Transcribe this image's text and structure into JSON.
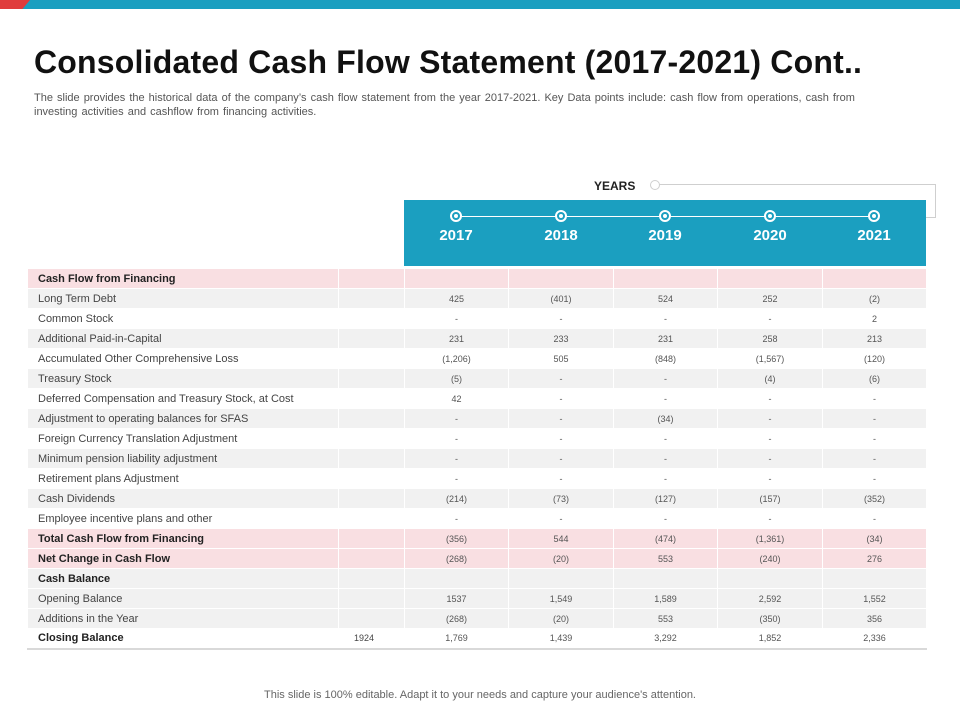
{
  "title": "Consolidated Cash Flow Statement (2017-2021) Cont..",
  "subtitle": "The slide provides the historical data of the company’s cash flow statement from the year 2017-2021. Key Data points include: cash flow from operations, cash from investing activities and cashflow from financing activities.",
  "years_label": "YEARS",
  "years": [
    "2017",
    "2018",
    "2019",
    "2020",
    "2021"
  ],
  "rows": [
    {
      "label": "Cash Flow from Financing",
      "extra": "",
      "values": [
        "",
        "",
        "",
        "",
        ""
      ]
    },
    {
      "label": "Long Term Debt",
      "extra": "",
      "values": [
        "425",
        "(401)",
        "524",
        "252",
        "(2)"
      ]
    },
    {
      "label": "Common Stock",
      "extra": "",
      "values": [
        "-",
        "-",
        "-",
        "-",
        "2"
      ]
    },
    {
      "label": "Additional Paid-in-Capital",
      "extra": "",
      "values": [
        "231",
        "233",
        "231",
        "258",
        "213"
      ]
    },
    {
      "label": "Accumulated Other Comprehensive Loss",
      "extra": "",
      "values": [
        "(1,206)",
        "505",
        "(848)",
        "(1,567)",
        "(120)"
      ]
    },
    {
      "label": "Treasury Stock",
      "extra": "",
      "values": [
        "(5)",
        "-",
        "-",
        "(4)",
        "(6)"
      ]
    },
    {
      "label": "Deferred Compensation and Treasury Stock, at Cost",
      "extra": "",
      "values": [
        "42",
        "-",
        "-",
        "-",
        "-"
      ]
    },
    {
      "label": "Adjustment to operating balances for SFAS",
      "extra": "",
      "values": [
        "-",
        "-",
        "(34)",
        "-",
        "-"
      ]
    },
    {
      "label": "Foreign Currency Translation Adjustment",
      "extra": "",
      "values": [
        "-",
        "-",
        "-",
        "-",
        "-"
      ]
    },
    {
      "label": "Minimum pension liability adjustment",
      "extra": "",
      "values": [
        "-",
        "-",
        "-",
        "-",
        "-"
      ]
    },
    {
      "label": "Retirement plans Adjustment",
      "extra": "",
      "values": [
        "-",
        "-",
        "-",
        "-",
        "-"
      ]
    },
    {
      "label": "Cash Dividends",
      "extra": "",
      "values": [
        "(214)",
        "(73)",
        "(127)",
        "(157)",
        "(352)"
      ]
    },
    {
      "label": "Employee incentive plans and other",
      "extra": "",
      "values": [
        "-",
        "-",
        "-",
        "-",
        "-"
      ]
    },
    {
      "label": "Total Cash Flow from Financing",
      "extra": "",
      "values": [
        "(356)",
        "544",
        "(474)",
        "(1,361)",
        "(34)"
      ]
    },
    {
      "label": "Net Change in Cash Flow",
      "extra": "",
      "values": [
        "(268)",
        "(20)",
        "553",
        "(240)",
        "276"
      ]
    },
    {
      "label": "Cash Balance",
      "extra": "",
      "values": [
        "",
        "",
        "",
        "",
        ""
      ]
    },
    {
      "label": "Opening Balance",
      "extra": "",
      "values": [
        "1537",
        "1,549",
        "1,589",
        "2,592",
        "1,552"
      ]
    },
    {
      "label": "Additions in the Year",
      "extra": "",
      "values": [
        "(268)",
        "(20)",
        "553",
        "(350)",
        "356"
      ]
    },
    {
      "label": "Closing Balance",
      "extra": "1924",
      "values": [
        "1,769",
        "1,439",
        "3,292",
        "1,852",
        "2,336"
      ]
    }
  ],
  "footer": "This slide is 100% editable. Adapt it to your needs and capture your audience's attention.",
  "colors": {
    "accent": "#1b9fc0",
    "highlight_row": "#f9dfe2",
    "gray_row": "#f1f1f1",
    "top_red": "#e03c3c"
  }
}
